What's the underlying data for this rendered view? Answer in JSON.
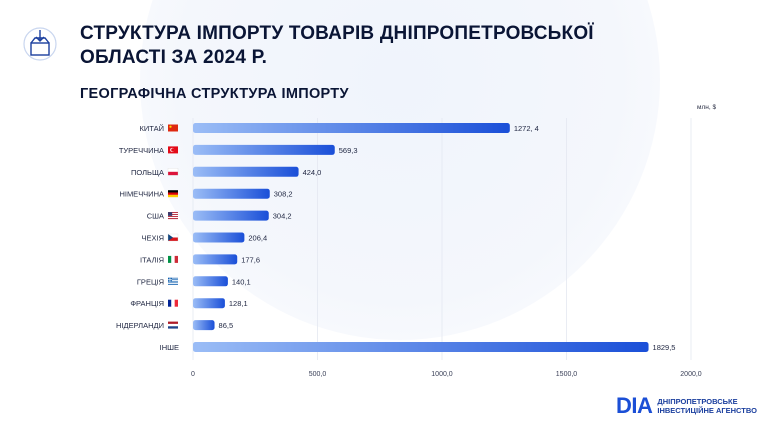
{
  "title": {
    "line1": "СТРУКТУРА ІМПОРТУ ТОВАРІВ ДНІПРОПЕТРОВСЬКОЇ",
    "line2": "ОБЛАСТІ ЗА 2024 Р."
  },
  "subtitle": "ГЕОГРАФІЧНА СТРУКТУРА ІМПОРТУ",
  "unit": "млн, $",
  "logo": {
    "mark": "DIA",
    "line1": "ДНІПРОПЕТРОВСЬКЕ",
    "line2": "ІНВЕСТИЦІЙНЕ АГЕНСТВО"
  },
  "colors": {
    "bar_start": "#9bbdf6",
    "bar_end": "#1a4fd8",
    "grid": "#e4e8f0"
  },
  "chart_data": {
    "type": "bar",
    "orientation": "horizontal",
    "categories": [
      "КИТАЙ",
      "ТУРЕЧЧИНА",
      "ПОЛЬЩА",
      "НІМЕЧЧИНА",
      "США",
      "ЧЕХІЯ",
      "ІТАЛІЯ",
      "ГРЕЦІЯ",
      "ФРАНЦІЯ",
      "НІДЕРЛАНДИ",
      "ІНШЕ"
    ],
    "flags": [
      "china",
      "turkey",
      "poland",
      "germany",
      "usa",
      "czech",
      "italy",
      "greece",
      "france",
      "netherlands",
      ""
    ],
    "values": [
      1272.4,
      569.3,
      424.0,
      308.2,
      304.2,
      206.4,
      177.6,
      140.1,
      128.1,
      86.5,
      1829.5
    ],
    "value_labels": [
      "1272, 4",
      "569,3",
      "424,0",
      "308,2",
      "304,2",
      "206,4",
      "177,6",
      "140,1",
      "128,1",
      "86,5",
      "1829,5"
    ],
    "xlim": [
      0,
      2000
    ],
    "xticks": [
      0,
      500,
      1000,
      1500,
      2000
    ],
    "xtick_labels": [
      "0",
      "500,0",
      "1000,0",
      "1500,0",
      "2000,0"
    ],
    "grid": true
  }
}
